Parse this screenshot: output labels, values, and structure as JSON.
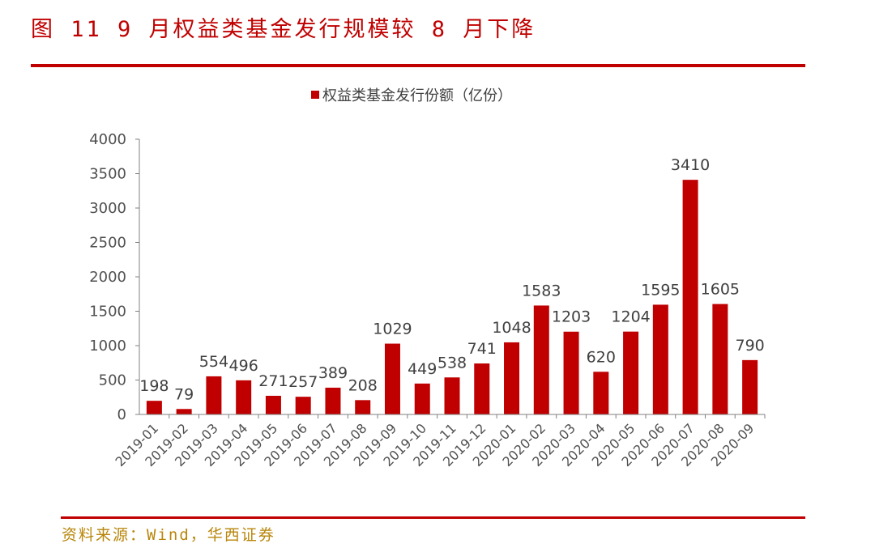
{
  "figure": {
    "title": "图 11  9 月权益类基金发行规模较 8 月下降",
    "source": "资料来源：Wind，华西证券"
  },
  "chart_data": {
    "type": "bar",
    "title": "",
    "xlabel": "",
    "ylabel": "",
    "legend_position": "top",
    "grid": false,
    "ylim": [
      0,
      4000
    ],
    "yticks": [
      0,
      500,
      1000,
      1500,
      2000,
      2500,
      3000,
      3500,
      4000
    ],
    "categories": [
      "2019-01",
      "2019-02",
      "2019-03",
      "2019-04",
      "2019-05",
      "2019-06",
      "2019-07",
      "2019-08",
      "2019-09",
      "2019-10",
      "2019-11",
      "2019-12",
      "2020-01",
      "2020-02",
      "2020-03",
      "2020-04",
      "2020-05",
      "2020-06",
      "2020-07",
      "2020-08",
      "2020-09"
    ],
    "series": [
      {
        "name": "权益类基金发行份额（亿份）",
        "color": "#c00000",
        "values": [
          198,
          79,
          554,
          496,
          271,
          257,
          389,
          208,
          1029,
          449,
          538,
          741,
          1048,
          1583,
          1203,
          620,
          1204,
          1595,
          3410,
          1605,
          790
        ]
      }
    ]
  }
}
